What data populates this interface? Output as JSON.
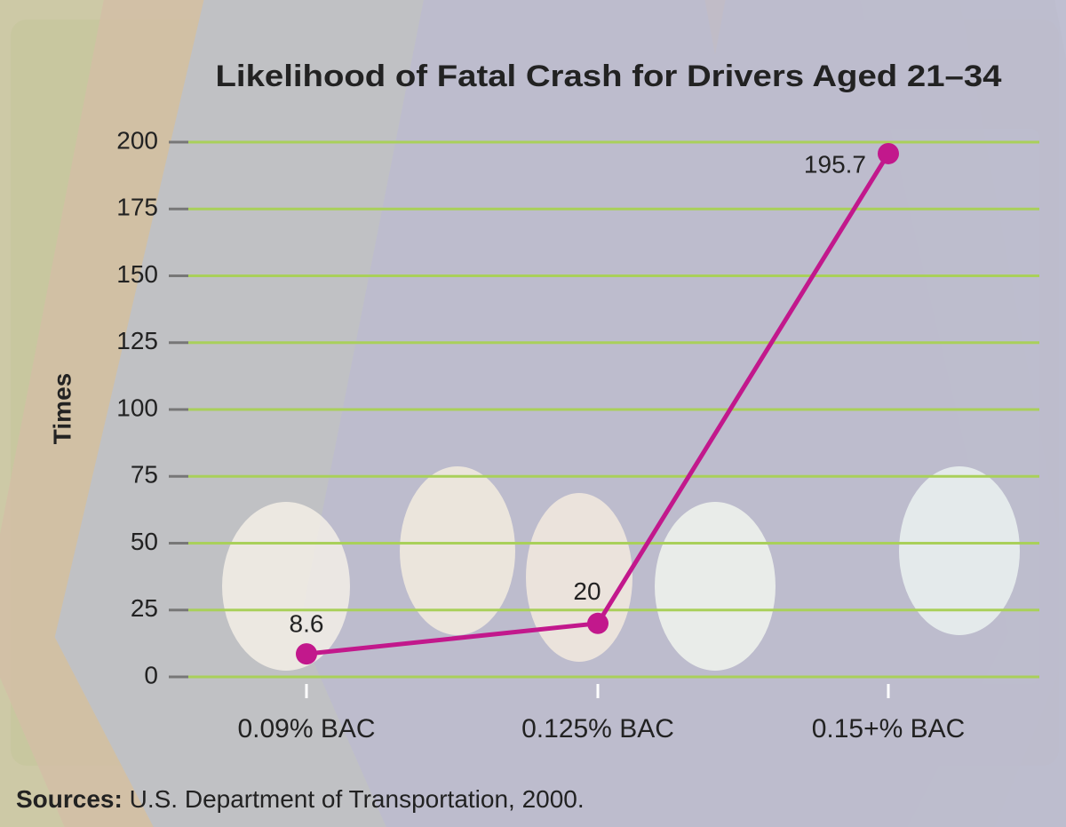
{
  "chart_data": {
    "type": "line",
    "title": "Likelihood of Fatal Crash for Drivers Aged 21–34",
    "y_label": "Times",
    "categories": [
      "0.09% BAC",
      "0.125% BAC",
      "0.15+% BAC"
    ],
    "values": [
      8.6,
      20,
      195.7
    ],
    "color": "#c2188c",
    "ylim": [
      0,
      200
    ],
    "yticks": [
      0,
      25,
      50,
      75,
      100,
      125,
      150,
      175,
      200
    ],
    "grid": true
  },
  "footer": {
    "label": "Sources:",
    "text": "U.S. Department of Transportation, 2000."
  }
}
